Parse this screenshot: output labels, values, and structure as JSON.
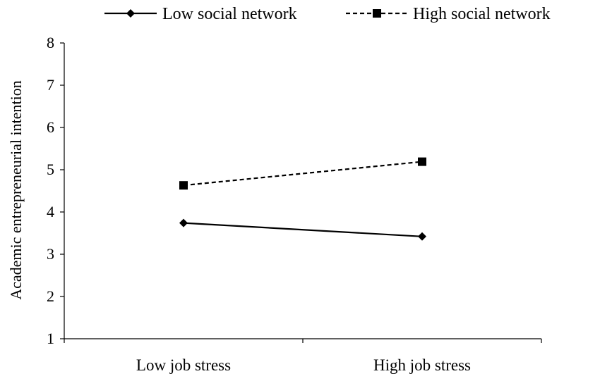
{
  "chart_data": {
    "type": "line",
    "title": "",
    "xlabel": "",
    "ylabel": "Academic entrepreneurial intention",
    "categories": [
      "Low job stress",
      "High job stress"
    ],
    "ylim": [
      1,
      8
    ],
    "yticks": [
      1,
      2,
      3,
      4,
      5,
      6,
      7,
      8
    ],
    "grid": false,
    "legend": "top",
    "series": [
      {
        "name": "Low social network",
        "values": [
          3.74,
          3.42
        ],
        "line_style": "solid",
        "marker": "diamond",
        "color": "#000000"
      },
      {
        "name": "High social network",
        "values": [
          4.63,
          5.19
        ],
        "line_style": "dashed",
        "marker": "square",
        "color": "#000000"
      }
    ]
  }
}
